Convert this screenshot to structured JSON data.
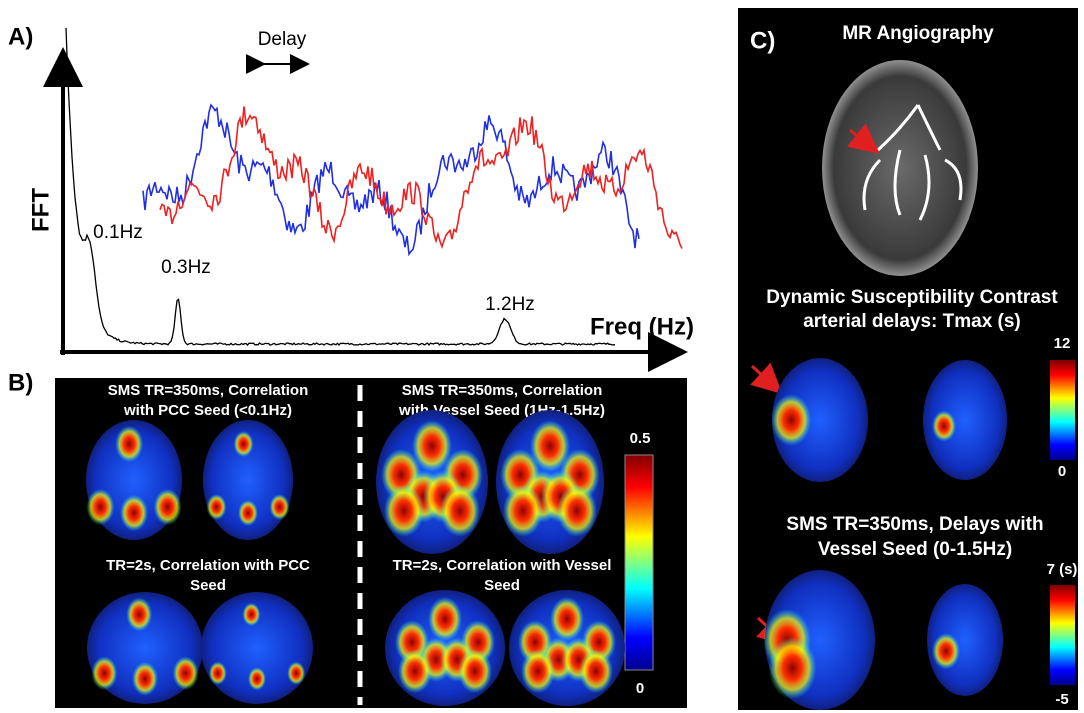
{
  "panel_a": {
    "label": "A)",
    "y_axis_label": "FFT",
    "x_axis_label": "Freq (Hz)",
    "delay_label": "Delay",
    "annotations": [
      "0.1Hz",
      "0.3Hz",
      "1.2Hz"
    ]
  },
  "panel_b": {
    "label": "B)",
    "captions": [
      [
        "SMS TR=350ms, Correlation",
        "with PCC Seed (<0.1Hz)"
      ],
      [
        "SMS TR=350ms, Correlation",
        "with Vessel Seed (1Hz-1.5Hz)"
      ],
      [
        "TR=2s, Correlation with PCC",
        "Seed"
      ],
      [
        "TR=2s, Correlation with Vessel",
        "Seed"
      ]
    ],
    "colorbar": {
      "max": "0.5",
      "min": "0"
    }
  },
  "panel_c": {
    "label": "C)",
    "title": "MR Angiography",
    "dsc_title": [
      "Dynamic Susceptibility Contrast",
      "arterial delays: Tmax (s)"
    ],
    "dsc_colorbar": {
      "max": "12",
      "min": "0"
    },
    "sms_title": [
      "SMS TR=350ms, Delays with",
      "Vessel Seed (0-1.5Hz)"
    ],
    "sms_colorbar": {
      "max": "7 (s)",
      "min": "-5"
    }
  }
}
